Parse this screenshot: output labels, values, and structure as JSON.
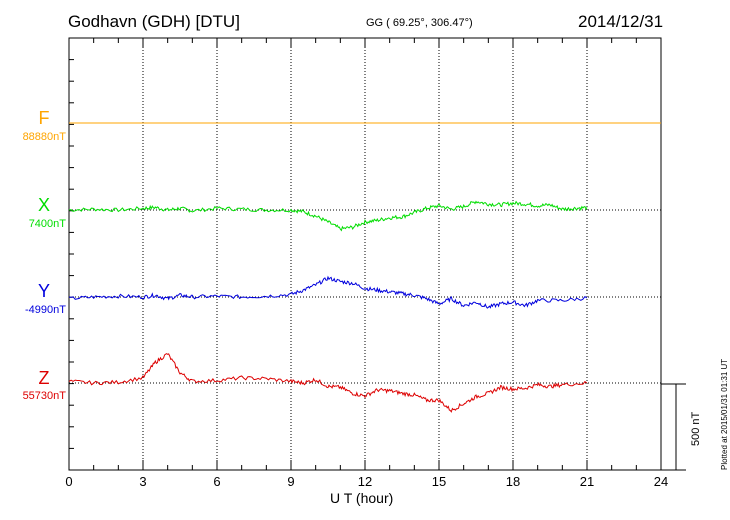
{
  "header": {
    "station": "Godhavn (GDH)  [DTU]",
    "coords": "GG ( 69.25°, 306.47°)",
    "date": "2014/12/31"
  },
  "plotted_note": "Plotted at 2015/01/31 01:31  UT",
  "scale_label": "500 nT",
  "colors": {
    "F": "#ffa500",
    "X": "#00dd00",
    "Y": "#0000dd",
    "Z": "#dd0000"
  },
  "chart_data": {
    "type": "line",
    "title": "Godhavn (GDH)  [DTU]",
    "xlabel": "U T (hour)",
    "ylabel": "",
    "xlim": [
      0,
      24
    ],
    "x_ticks": [
      "0",
      "3",
      "6",
      "9",
      "12",
      "15",
      "18",
      "21",
      "24"
    ],
    "scale_bar_nT": 500,
    "grid": "dotted vertical lines every 3 hours; dotted baseline per component",
    "series": [
      {
        "name": "F",
        "baseline_label": "88880nT",
        "baseline_nT": 88880,
        "x": [
          0,
          24
        ],
        "y_offset_nT": [
          0,
          0
        ]
      },
      {
        "name": "X",
        "baseline_label": "7400nT",
        "baseline_nT": 7400,
        "x": [
          0,
          1,
          2,
          3,
          3.5,
          4,
          4.5,
          5,
          6,
          7,
          8,
          9,
          9.5,
          10,
          10.5,
          11,
          11.5,
          12,
          12.5,
          13,
          13.5,
          14,
          14.5,
          15,
          15.5,
          16,
          16.5,
          17,
          17.5,
          18,
          18.5,
          19,
          19.5,
          20,
          20.5,
          21
        ],
        "y_offset_nT": [
          0,
          5,
          0,
          10,
          15,
          0,
          10,
          -5,
          10,
          5,
          0,
          0,
          -10,
          -35,
          -70,
          -110,
          -100,
          -70,
          -60,
          -45,
          -40,
          -15,
          10,
          25,
          5,
          20,
          50,
          35,
          30,
          40,
          35,
          25,
          30,
          5,
          10,
          15
        ]
      },
      {
        "name": "Y",
        "baseline_label": "-4990nT",
        "baseline_nT": -4990,
        "x": [
          0,
          1,
          2,
          3,
          3.5,
          4,
          4.5,
          5,
          6,
          7,
          8,
          9,
          9.5,
          10,
          10.5,
          11,
          11.5,
          12,
          12.5,
          13,
          13.5,
          14,
          14.5,
          15,
          15.5,
          16,
          16.5,
          17,
          17.5,
          18,
          18.5,
          19,
          20,
          21
        ],
        "y_offset_nT": [
          -10,
          0,
          5,
          0,
          10,
          -10,
          10,
          0,
          5,
          0,
          5,
          15,
          40,
          70,
          110,
          90,
          80,
          50,
          40,
          30,
          20,
          10,
          -10,
          -40,
          -10,
          -50,
          -30,
          -60,
          -40,
          -30,
          -50,
          -20,
          -20,
          -5
        ]
      },
      {
        "name": "Z",
        "baseline_label": "55730nT",
        "baseline_nT": 55730,
        "x": [
          0,
          1,
          2,
          3,
          3.5,
          4,
          4.5,
          5,
          6,
          7,
          8,
          9,
          9.5,
          10,
          10.5,
          11,
          11.5,
          12,
          12.5,
          13,
          13.5,
          14,
          14.5,
          15,
          15.5,
          16,
          16.5,
          17,
          17.5,
          18,
          18.5,
          19,
          19.5,
          20,
          21
        ],
        "y_offset_nT": [
          10,
          0,
          5,
          30,
          120,
          170,
          60,
          10,
          15,
          30,
          25,
          10,
          0,
          20,
          -20,
          -25,
          -60,
          -75,
          -40,
          -45,
          -60,
          -70,
          -100,
          -100,
          -160,
          -120,
          -80,
          -60,
          -25,
          -35,
          -30,
          -10,
          -20,
          -10,
          0
        ]
      }
    ]
  }
}
